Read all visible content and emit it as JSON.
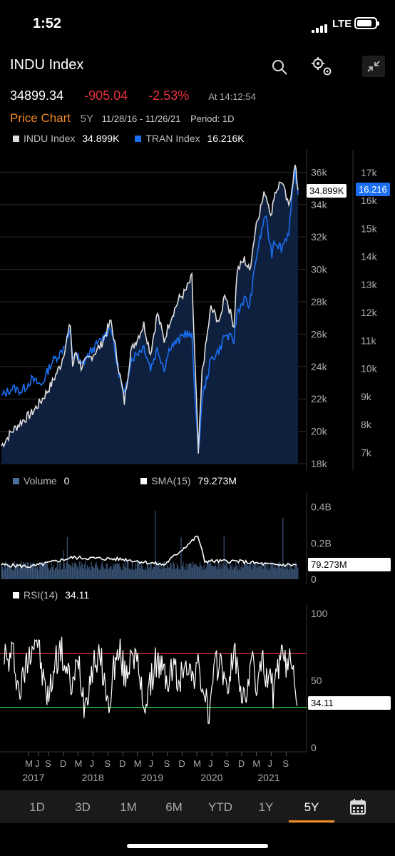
{
  "status": {
    "time": "1:52",
    "network": "LTE"
  },
  "header": {
    "title": "INDU Index",
    "last_price": "34899.34",
    "change": "-905.04",
    "change_pct": "-2.53%",
    "as_of": "At 14:12:54",
    "chart_label": "Price Chart",
    "range": "5Y",
    "date_range": "11/28/16 - 11/26/21",
    "period": "Period: 1D",
    "icons": [
      "search-icon",
      "settings-icon",
      "collapse-icon"
    ]
  },
  "legend": {
    "series1_name": "INDU Index",
    "series1_value": "34.899K",
    "series2_name": "TRAN Index",
    "series2_value": "16.216K"
  },
  "volume_legend": {
    "name": "Volume",
    "value": "0",
    "sma_name": "SMA(15)",
    "sma_value": "79.273M"
  },
  "rsi_legend": {
    "name": "RSI(14)",
    "value": "34.11"
  },
  "tags": {
    "indu": "34.899K",
    "tran": "16.216",
    "sma": "79.273M",
    "rsi": "34.11"
  },
  "periods": {
    "items": [
      "1D",
      "3D",
      "1M",
      "6M",
      "YTD",
      "1Y",
      "5Y"
    ],
    "selected": "5Y"
  },
  "colors": {
    "indu": "#dddddd",
    "tran": "#1a6ff0",
    "area": "#0f1f3e",
    "negative": "#e8303f",
    "accent": "#f08a24",
    "volume": "#3b5578",
    "rsi_upper": "#d0303f",
    "rsi_lower": "#2fc42f"
  },
  "chart_data": [
    {
      "type": "line",
      "x": [
        "2016-11-28",
        "2017-02-01",
        "2017-04-01",
        "2017-06-01",
        "2017-08-01",
        "2017-10-01",
        "2017-12-01",
        "2018-01-26",
        "2018-02-09",
        "2018-03-01",
        "2018-04-02",
        "2018-06-01",
        "2018-08-01",
        "2018-10-03",
        "2018-11-01",
        "2018-12-24",
        "2019-02-01",
        "2019-04-23",
        "2019-06-03",
        "2019-07-15",
        "2019-08-26",
        "2019-10-01",
        "2019-11-27",
        "2020-01-02",
        "2020-02-12",
        "2020-03-23",
        "2020-04-15",
        "2020-06-08",
        "2020-08-03",
        "2020-09-01",
        "2020-10-28",
        "2020-11-16",
        "2020-12-31",
        "2021-02-01",
        "2021-03-15",
        "2021-05-07",
        "2021-06-18",
        "2021-07-01",
        "2021-08-16",
        "2021-09-30",
        "2021-11-08",
        "2021-11-26"
      ],
      "series": [
        {
          "name": "INDU Index",
          "values": [
            19.1,
            20.0,
            20.6,
            21.1,
            21.9,
            22.9,
            24.2,
            26.6,
            24.0,
            24.9,
            24.0,
            24.6,
            25.3,
            26.8,
            25.0,
            21.8,
            24.9,
            26.6,
            24.8,
            27.3,
            25.6,
            26.9,
            28.2,
            28.6,
            29.5,
            18.6,
            23.6,
            27.6,
            26.7,
            28.6,
            26.5,
            29.9,
            30.6,
            29.9,
            32.9,
            34.8,
            33.3,
            34.6,
            35.5,
            33.8,
            36.4,
            34.9
          ]
        },
        {
          "name": "TRAN Index",
          "values": [
            9.0,
            9.3,
            9.2,
            9.6,
            9.4,
            10.2,
            10.6,
            11.3,
            10.3,
            10.6,
            10.1,
            10.6,
            11.0,
            11.5,
            10.4,
            9.0,
            10.3,
            10.8,
            10.0,
            10.7,
            10.0,
            10.8,
            11.0,
            11.3,
            11.1,
            6.9,
            8.9,
            10.3,
            10.7,
            11.2,
            11.0,
            12.0,
            12.5,
            12.2,
            14.0,
            15.5,
            14.1,
            14.6,
            14.3,
            14.9,
            17.1,
            16.2
          ]
        }
      ],
      "ylim_left": [
        18,
        36.5
      ],
      "yticks_left": [
        "36k",
        "34k",
        "32k",
        "30k",
        "28k",
        "26k",
        "24k",
        "22k",
        "20k",
        "18k"
      ],
      "ylim_right": [
        6.6,
        17.3
      ],
      "yticks_right": [
        "17k",
        "16k",
        "15k",
        "14k",
        "13k",
        "12k",
        "11k",
        "10k",
        "9k",
        "8k",
        "7k"
      ]
    },
    {
      "type": "bar",
      "ylim": [
        0,
        0.45
      ],
      "yticks": [
        "0.4B",
        "0.2B",
        "0"
      ],
      "sma_x": [
        "2016-11-28",
        "2017-06-01",
        "2018-02-09",
        "2018-12-24",
        "2019-08-26",
        "2020-03-20",
        "2020-05-01",
        "2020-11-16",
        "2021-06-18",
        "2021-11-26"
      ],
      "sma_values": [
        0.08,
        0.07,
        0.12,
        0.11,
        0.08,
        0.24,
        0.1,
        0.1,
        0.08,
        0.079
      ]
    },
    {
      "type": "line",
      "ylim": [
        0,
        100
      ],
      "yticks": [
        "100",
        "50",
        "0"
      ],
      "upper_band": 70,
      "lower_band": 30,
      "values": [
        83,
        62,
        71,
        40,
        58,
        77,
        83,
        50,
        36,
        64,
        73,
        56,
        44,
        67,
        32,
        54,
        68,
        61,
        28,
        62,
        70,
        50,
        78,
        58,
        32,
        43,
        66,
        58,
        49,
        62,
        44,
        70,
        52,
        60,
        45,
        22,
        57,
        68,
        38,
        72,
        55,
        30,
        66,
        48,
        61,
        55,
        38,
        71,
        58,
        70,
        34
      ],
      "xticks": [
        "M",
        "J",
        "S",
        "D",
        "M",
        "J",
        "S",
        "D",
        "M",
        "J",
        "S",
        "D",
        "M",
        "J",
        "S",
        "D",
        "M",
        "J",
        "S"
      ],
      "years": [
        "2017",
        "2018",
        "2019",
        "2020",
        "2021"
      ]
    }
  ]
}
